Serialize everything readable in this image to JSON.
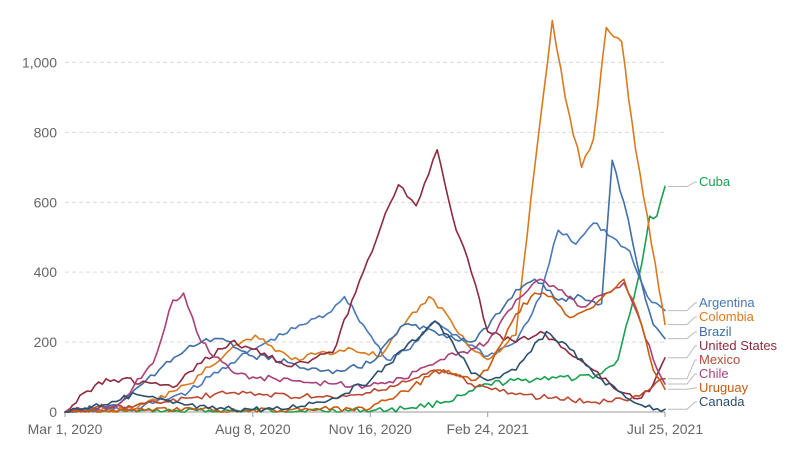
{
  "chart_data": {
    "type": "line",
    "title": "",
    "xlabel": "",
    "ylabel": "",
    "ylim": [
      0,
      1150
    ],
    "y_ticks": [
      0,
      200,
      400,
      600,
      800,
      1000
    ],
    "y_tick_labels": [
      "0",
      "200",
      "400",
      "600",
      "800",
      "1,000"
    ],
    "grid": true,
    "x_tick_labels": [
      "Mar 1, 2020",
      "Aug 8, 2020",
      "Nov 16, 2020",
      "Feb 24, 2021",
      "Jul 25, 2021"
    ],
    "x_tick_dates": [
      "2020-03-01",
      "2020-08-08",
      "2020-11-16",
      "2021-02-24",
      "2021-07-25"
    ],
    "x_range": [
      "2020-03-01",
      "2021-07-25"
    ],
    "series": [
      {
        "name": "Cuba",
        "color": "#18a050",
        "label_value": 645,
        "points": [
          [
            "2020-03-01",
            0
          ],
          [
            "2020-06-01",
            2
          ],
          [
            "2020-09-01",
            3
          ],
          [
            "2020-12-01",
            5
          ],
          [
            "2021-01-15",
            25
          ],
          [
            "2021-02-05",
            50
          ],
          [
            "2021-02-24",
            80
          ],
          [
            "2021-03-25",
            90
          ],
          [
            "2021-04-20",
            100
          ],
          [
            "2021-05-10",
            95
          ],
          [
            "2021-06-01",
            110
          ],
          [
            "2021-06-15",
            150
          ],
          [
            "2021-06-25",
            280
          ],
          [
            "2021-07-05",
            420
          ],
          [
            "2021-07-12",
            560
          ],
          [
            "2021-07-18",
            560
          ],
          [
            "2021-07-25",
            645
          ]
        ]
      },
      {
        "name": "Argentina",
        "color": "#4a78b8",
        "label_value": 290,
        "points": [
          [
            "2020-03-01",
            0
          ],
          [
            "2020-05-01",
            10
          ],
          [
            "2020-06-15",
            60
          ],
          [
            "2020-07-20",
            140
          ],
          [
            "2020-08-20",
            200
          ],
          [
            "2020-09-20",
            250
          ],
          [
            "2020-10-10",
            280
          ],
          [
            "2020-10-25",
            330
          ],
          [
            "2020-11-10",
            250
          ],
          [
            "2020-11-30",
            150
          ],
          [
            "2020-12-20",
            180
          ],
          [
            "2021-01-10",
            260
          ],
          [
            "2021-02-01",
            210
          ],
          [
            "2021-02-24",
            160
          ],
          [
            "2021-03-20",
            200
          ],
          [
            "2021-04-10",
            330
          ],
          [
            "2021-04-25",
            520
          ],
          [
            "2021-05-10",
            480
          ],
          [
            "2021-05-25",
            540
          ],
          [
            "2021-06-10",
            500
          ],
          [
            "2021-06-25",
            460
          ],
          [
            "2021-07-10",
            330
          ],
          [
            "2021-07-25",
            290
          ]
        ]
      },
      {
        "name": "Colombia",
        "color": "#d97a1e",
        "label_value": 250,
        "points": [
          [
            "2020-03-01",
            0
          ],
          [
            "2020-05-01",
            10
          ],
          [
            "2020-06-15",
            80
          ],
          [
            "2020-07-20",
            180
          ],
          [
            "2020-08-10",
            220
          ],
          [
            "2020-09-10",
            150
          ],
          [
            "2020-10-10",
            170
          ],
          [
            "2020-11-01",
            180
          ],
          [
            "2020-11-25",
            160
          ],
          [
            "2020-12-15",
            250
          ],
          [
            "2021-01-05",
            330
          ],
          [
            "2021-01-20",
            280
          ],
          [
            "2021-02-10",
            180
          ],
          [
            "2021-02-24",
            150
          ],
          [
            "2021-03-20",
            220
          ],
          [
            "2021-04-05",
            700
          ],
          [
            "2021-04-20",
            1120
          ],
          [
            "2021-05-01",
            900
          ],
          [
            "2021-05-15",
            700
          ],
          [
            "2021-05-25",
            780
          ],
          [
            "2021-06-05",
            1100
          ],
          [
            "2021-06-18",
            1060
          ],
          [
            "2021-06-30",
            750
          ],
          [
            "2021-07-10",
            560
          ],
          [
            "2021-07-20",
            350
          ],
          [
            "2021-07-25",
            250
          ]
        ]
      },
      {
        "name": "Brazil",
        "color": "#3f6fa6",
        "label_value": 210,
        "points": [
          [
            "2020-03-01",
            0
          ],
          [
            "2020-04-15",
            20
          ],
          [
            "2020-05-20",
            120
          ],
          [
            "2020-06-15",
            190
          ],
          [
            "2020-07-10",
            210
          ],
          [
            "2020-08-08",
            160
          ],
          [
            "2020-09-10",
            140
          ],
          [
            "2020-10-15",
            110
          ],
          [
            "2020-11-16",
            140
          ],
          [
            "2020-12-15",
            250
          ],
          [
            "2021-01-10",
            230
          ],
          [
            "2021-02-10",
            200
          ],
          [
            "2021-02-24",
            240
          ],
          [
            "2021-03-20",
            350
          ],
          [
            "2021-04-05",
            380
          ],
          [
            "2021-04-25",
            320
          ],
          [
            "2021-05-15",
            330
          ],
          [
            "2021-06-01",
            310
          ],
          [
            "2021-06-10",
            720
          ],
          [
            "2021-06-20",
            600
          ],
          [
            "2021-07-05",
            370
          ],
          [
            "2021-07-15",
            250
          ],
          [
            "2021-07-25",
            210
          ]
        ]
      },
      {
        "name": "United States",
        "color": "#8c2b3e",
        "label_value": 155,
        "points": [
          [
            "2020-03-01",
            0
          ],
          [
            "2020-03-20",
            60
          ],
          [
            "2020-04-05",
            95
          ],
          [
            "2020-05-10",
            85
          ],
          [
            "2020-06-01",
            70
          ],
          [
            "2020-06-25",
            140
          ],
          [
            "2020-07-20",
            200
          ],
          [
            "2020-08-08",
            180
          ],
          [
            "2020-09-10",
            130
          ],
          [
            "2020-10-15",
            170
          ],
          [
            "2020-11-10",
            400
          ],
          [
            "2020-11-25",
            530
          ],
          [
            "2020-12-10",
            650
          ],
          [
            "2020-12-25",
            590
          ],
          [
            "2021-01-12",
            750
          ],
          [
            "2021-01-25",
            560
          ],
          [
            "2021-02-10",
            400
          ],
          [
            "2021-02-24",
            230
          ],
          [
            "2021-03-20",
            200
          ],
          [
            "2021-04-10",
            230
          ],
          [
            "2021-05-01",
            180
          ],
          [
            "2021-05-25",
            120
          ],
          [
            "2021-06-15",
            60
          ],
          [
            "2021-07-05",
            40
          ],
          [
            "2021-07-15",
            80
          ],
          [
            "2021-07-25",
            155
          ]
        ]
      },
      {
        "name": "Mexico",
        "color": "#b84a32",
        "label_value": 95,
        "points": [
          [
            "2020-03-01",
            0
          ],
          [
            "2020-05-01",
            20
          ],
          [
            "2020-06-15",
            40
          ],
          [
            "2020-07-20",
            55
          ],
          [
            "2020-08-20",
            50
          ],
          [
            "2020-09-20",
            45
          ],
          [
            "2020-10-20",
            40
          ],
          [
            "2020-11-16",
            55
          ],
          [
            "2020-12-20",
            90
          ],
          [
            "2021-01-10",
            120
          ],
          [
            "2021-01-25",
            110
          ],
          [
            "2021-02-10",
            80
          ],
          [
            "2021-02-24",
            70
          ],
          [
            "2021-03-20",
            50
          ],
          [
            "2021-04-20",
            40
          ],
          [
            "2021-05-20",
            30
          ],
          [
            "2021-06-20",
            35
          ],
          [
            "2021-07-10",
            60
          ],
          [
            "2021-07-25",
            95
          ]
        ]
      },
      {
        "name": "Chile",
        "color": "#a8407a",
        "label_value": 80,
        "points": [
          [
            "2020-03-01",
            0
          ],
          [
            "2020-04-15",
            20
          ],
          [
            "2020-05-15",
            140
          ],
          [
            "2020-06-01",
            320
          ],
          [
            "2020-06-10",
            340
          ],
          [
            "2020-06-25",
            200
          ],
          [
            "2020-07-20",
            120
          ],
          [
            "2020-08-08",
            100
          ],
          [
            "2020-09-10",
            90
          ],
          [
            "2020-10-15",
            80
          ],
          [
            "2020-11-16",
            75
          ],
          [
            "2020-12-15",
            95
          ],
          [
            "2021-01-15",
            150
          ],
          [
            "2021-02-10",
            180
          ],
          [
            "2021-02-24",
            200
          ],
          [
            "2021-03-20",
            320
          ],
          [
            "2021-04-10",
            380
          ],
          [
            "2021-04-25",
            350
          ],
          [
            "2021-05-15",
            300
          ],
          [
            "2021-06-05",
            340
          ],
          [
            "2021-06-20",
            370
          ],
          [
            "2021-07-05",
            250
          ],
          [
            "2021-07-15",
            150
          ],
          [
            "2021-07-25",
            80
          ]
        ]
      },
      {
        "name": "Uruguay",
        "color": "#c95a10",
        "label_value": 65,
        "points": [
          [
            "2020-03-01",
            0
          ],
          [
            "2020-06-01",
            5
          ],
          [
            "2020-09-01",
            5
          ],
          [
            "2020-11-16",
            10
          ],
          [
            "2020-12-15",
            60
          ],
          [
            "2021-01-15",
            120
          ],
          [
            "2021-02-10",
            90
          ],
          [
            "2021-02-24",
            120
          ],
          [
            "2021-03-20",
            280
          ],
          [
            "2021-04-05",
            340
          ],
          [
            "2021-04-20",
            330
          ],
          [
            "2021-05-05",
            270
          ],
          [
            "2021-05-25",
            300
          ],
          [
            "2021-06-05",
            340
          ],
          [
            "2021-06-20",
            380
          ],
          [
            "2021-07-05",
            250
          ],
          [
            "2021-07-15",
            120
          ],
          [
            "2021-07-25",
            65
          ]
        ]
      },
      {
        "name": "Canada",
        "color": "#2b4f6e",
        "label_value": 8,
        "points": [
          [
            "2020-03-01",
            0
          ],
          [
            "2020-04-10",
            30
          ],
          [
            "2020-05-01",
            50
          ],
          [
            "2020-06-01",
            25
          ],
          [
            "2020-07-01",
            10
          ],
          [
            "2020-09-01",
            8
          ],
          [
            "2020-10-15",
            40
          ],
          [
            "2020-11-16",
            90
          ],
          [
            "2020-12-15",
            180
          ],
          [
            "2021-01-10",
            260
          ],
          [
            "2021-01-25",
            200
          ],
          [
            "2021-02-10",
            110
          ],
          [
            "2021-02-24",
            90
          ],
          [
            "2021-03-20",
            120
          ],
          [
            "2021-04-15",
            230
          ],
          [
            "2021-05-05",
            180
          ],
          [
            "2021-05-25",
            110
          ],
          [
            "2021-06-15",
            60
          ],
          [
            "2021-07-05",
            20
          ],
          [
            "2021-07-25",
            8
          ]
        ]
      }
    ]
  }
}
